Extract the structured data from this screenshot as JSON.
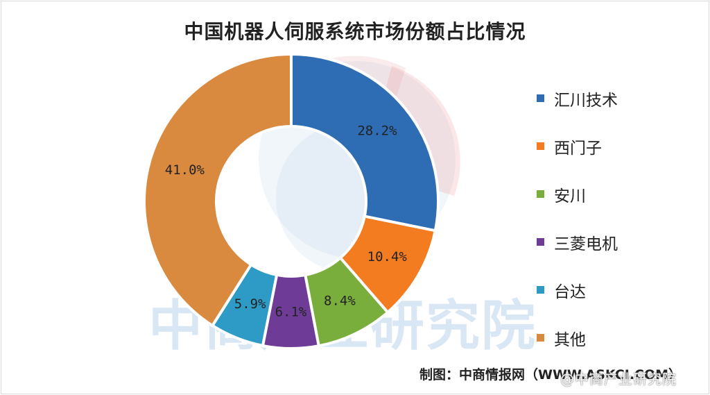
{
  "chart_data": {
    "type": "pie",
    "title": "中国机器人伺服系统市场份额占比情况",
    "categories": [
      "汇川技术",
      "西门子",
      "安川",
      "三菱电机",
      "台达",
      "其他"
    ],
    "values": [
      28.2,
      10.4,
      8.4,
      6.1,
      5.9,
      41.0
    ],
    "labels": [
      "28.2%",
      "10.4%",
      "8.4%",
      "6.1%",
      "5.9%",
      "41.0%"
    ],
    "colors": [
      "#2E6DB4",
      "#F47C20",
      "#7AAE3C",
      "#6E3C96",
      "#2E9BC7",
      "#D98A3E"
    ],
    "legend_position": "right"
  },
  "watermark": {
    "text": "中商产业研究院"
  },
  "footer": {
    "source": "制图：中商情报网（WWW.ASKCI.COM）",
    "corner_watermark": "@中商产业研究院"
  }
}
